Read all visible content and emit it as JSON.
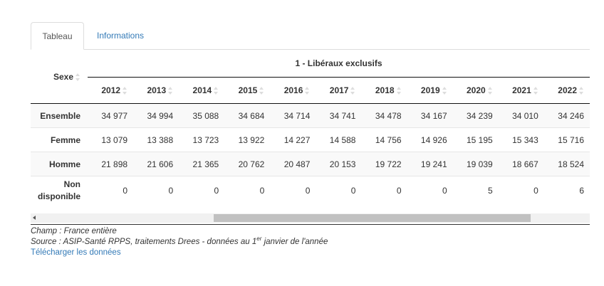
{
  "tabs": [
    {
      "label": "Tableau",
      "active": true
    },
    {
      "label": "Informations",
      "active": false
    }
  ],
  "table": {
    "row_header": "Sexe",
    "group_header": "1 - Libéraux exclusifs",
    "years": [
      "2012",
      "2013",
      "2014",
      "2015",
      "2016",
      "2017",
      "2018",
      "2019",
      "2020",
      "2021",
      "2022"
    ],
    "rows": [
      {
        "label": "Ensemble",
        "values": [
          "34 977",
          "34 994",
          "35 088",
          "34 684",
          "34 714",
          "34 741",
          "34 478",
          "34 167",
          "34 239",
          "34 010",
          "34 246"
        ]
      },
      {
        "label": "Femme",
        "values": [
          "13 079",
          "13 388",
          "13 723",
          "13 922",
          "14 227",
          "14 588",
          "14 756",
          "14 926",
          "15 195",
          "15 343",
          "15 716"
        ]
      },
      {
        "label": "Homme",
        "values": [
          "21 898",
          "21 606",
          "21 365",
          "20 762",
          "20 487",
          "20 153",
          "19 722",
          "19 241",
          "19 039",
          "18 667",
          "18 524"
        ]
      },
      {
        "label_line1": "Non",
        "label_line2": "disponible",
        "values": [
          "0",
          "0",
          "0",
          "0",
          "0",
          "0",
          "0",
          "0",
          "5",
          "0",
          "6"
        ]
      }
    ]
  },
  "notes": {
    "champ": "Champ : France entière",
    "source_before": "Source : ASIP-Santé RPPS, traitements Drees - données au 1",
    "source_sup": "er",
    "source_after": " janvier de l'année",
    "download_link": "Télécharger les données"
  },
  "colors": {
    "link": "#337ab7",
    "stripe": "#f9f9f9",
    "scroll_thumb": "#c1c1c1"
  }
}
